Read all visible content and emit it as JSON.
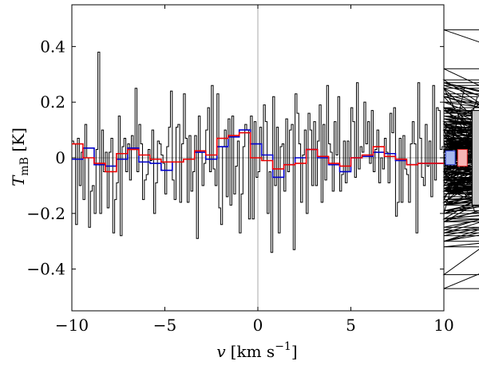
{
  "chart_data": {
    "type": "line",
    "xlabel": {
      "var": "v",
      "unit": "[km s",
      "exp": "−1",
      "close": "]"
    },
    "ylabel": {
      "var": "T",
      "sub": "mB",
      "unit": " [K]"
    },
    "xlim": [
      -10,
      10
    ],
    "ylim": [
      -0.55,
      0.55
    ],
    "x_ticks": [
      {
        "value": -10,
        "label": "−10"
      },
      {
        "value": -5,
        "label": "−5"
      },
      {
        "value": 0,
        "label": "0"
      },
      {
        "value": 5,
        "label": "5"
      },
      {
        "value": 10,
        "label": "10"
      }
    ],
    "y_ticks": [
      {
        "value": 0.4,
        "label": "0.4"
      },
      {
        "value": 0.2,
        "label": "0.2"
      },
      {
        "value": 0,
        "label": "0"
      },
      {
        "value": -0.2,
        "label": "−0.2"
      },
      {
        "value": -0.4,
        "label": "−0.4"
      }
    ],
    "reference_lines": {
      "x": 0,
      "y": 0,
      "color": "#aaaaaa"
    },
    "series": [
      {
        "color": "#000000",
        "step": true,
        "x_start": -10,
        "dx": 0.1,
        "values": [
          0.06,
          0.05,
          -0.24,
          0.07,
          -0.1,
          0.02,
          -0.15,
          0.12,
          0.0,
          -0.25,
          -0.12,
          -0.1,
          -0.2,
          0.03,
          0.38,
          -0.2,
          0.1,
          -0.05,
          0.02,
          -0.18,
          0.02,
          0.07,
          -0.27,
          -0.15,
          -0.09,
          0.15,
          -0.28,
          0.04,
          0.07,
          -0.05,
          0.05,
          -0.08,
          0.08,
          0.03,
          0.25,
          -0.05,
          0.12,
          0.05,
          -0.15,
          -0.08,
          -0.06,
          0.03,
          -0.01,
          0.1,
          -0.2,
          -0.09,
          0.06,
          0.05,
          0.01,
          -0.02,
          -0.13,
          0.04,
          0.11,
          0.24,
          -0.08,
          -0.15,
          0.11,
          0.12,
          -0.16,
          0.05,
          0.23,
          0.07,
          -0.16,
          0.08,
          -0.12,
          -0.05,
          0.08,
          -0.29,
          0.15,
          0.02,
          -0.1,
          -0.02,
          0.1,
          0.18,
          -0.05,
          0.26,
          -0.04,
          -0.1,
          0.23,
          -0.18,
          -0.24,
          0.04,
          0.1,
          -0.14,
          0.14,
          -0.17,
          0.15,
          -0.13,
          -0.03,
          0.06,
          -0.27,
          -0.13,
          0.04,
          0.12,
          0.1,
          -0.22,
          0.15,
          -0.22,
          0.13,
          -0.07,
          -0.05,
          0.11,
          -0.01,
          0.19,
          0.13,
          -0.2,
          -0.05,
          -0.34,
          0.22,
          -0.1,
          0.11,
          -0.27,
          0.04,
          0.05,
          -0.12,
          0.14,
          -0.05,
          0.1,
          0.12,
          -0.33,
          0.23,
          0.16,
          0.05,
          -0.16,
          0.01,
          0.1,
          -0.2,
          0.16,
          0.1,
          -0.1,
          0.13,
          -0.1,
          0.06,
          0.19,
          -0.16,
          0.12,
          -0.08,
          0.26,
          0.05,
          0.02,
          -0.12,
          0.13,
          0.01,
          0.22,
          -0.12,
          -0.06,
          0.06,
          -0.09,
          0.06,
          -0.05,
          0.18,
          0.13,
          -0.07,
          0.27,
          -0.04,
          0.04,
          0.02,
          0.2,
          0.05,
          0.13,
          -0.02,
          0.17,
          -0.05,
          0.03,
          0.1,
          -0.09,
          0.0,
          -0.04,
          0.07,
          0.02,
          -0.09,
          0.16,
          0.09,
          0.18,
          -0.21,
          -0.16,
          0.07,
          -0.16,
          0.08,
          -0.04,
          -0.06,
          -0.16,
          0.05,
          0.13,
          0.05,
          -0.27,
          0.27,
          0.07,
          -0.07,
          -0.1,
          0.12,
          -0.03,
          0.06,
          -0.14,
          0.26,
          -0.08,
          0.18,
          0.17,
          0.03,
          0.04,
          0.02,
          -0.06,
          0.02,
          0.06,
          -0.05,
          -0.1,
          -0.05,
          0.13,
          -0.05,
          -0.09,
          -0.09,
          0.25,
          0.1,
          -0.05,
          -0.15,
          0.02,
          0.1,
          -0.2,
          0.22,
          0.08,
          -0.04,
          0.03,
          0.12,
          0.08,
          -0.08,
          0.05,
          0.04,
          0.01,
          0.04,
          0.0,
          0.1,
          0.25,
          0.04,
          0.03,
          0.05,
          -0.07,
          0.12,
          -0.08,
          0.03,
          0.18,
          -0.1,
          -0.04,
          0.04,
          -0.12,
          0.08,
          0.14,
          0.05,
          0.0,
          -0.12,
          0.03,
          -0.14,
          0.13,
          -0.1,
          0.01,
          0.12,
          -0.08,
          0.0,
          0.03,
          -0.05,
          -0.01,
          0.04,
          0.07,
          -0.11,
          0.01,
          -0.07,
          -0.08,
          0.1,
          -0.09,
          0.09,
          0.02,
          0.07,
          0.28,
          -0.03,
          -0.08,
          0.1,
          -0.12,
          -0.16,
          0.16,
          0.2,
          0.0,
          -0.22,
          0.1,
          0.11,
          0.04,
          -0.11,
          0.14,
          0.13,
          0.06,
          0.03,
          -0.04,
          -0.16,
          0.32,
          0.03,
          0.1,
          -0.23,
          0.12,
          -0.04,
          0.06,
          -0.26,
          -0.06,
          0.18,
          0.03,
          -0.12,
          -0.06,
          0.15,
          0.0,
          0.04,
          -0.12,
          -0.22,
          -0.15,
          -0.11,
          -0.42,
          0.12,
          0.0,
          -0.02,
          0.05,
          -0.08,
          -0.27,
          -0.04,
          0.14,
          -0.1,
          0.15,
          0.06,
          0.0,
          0.18,
          -0.17,
          0.18,
          -0.08,
          -0.2,
          0.14,
          -0.02,
          0.07,
          -0.07,
          0.17,
          -0.32,
          -0.23,
          0.06,
          0.07,
          -0.19,
          0.0,
          0.06,
          0.08,
          -0.17,
          0.1,
          0.04,
          -0.12,
          0.25,
          -0.2,
          -0.01,
          0.18,
          -0.05,
          -0.1,
          0.18,
          0.04,
          -0.08,
          -0.11,
          0.0,
          0.05,
          0.0,
          0.15,
          0.0,
          -0.12,
          -0.07,
          0.23,
          -0.08,
          -0.1,
          0.05,
          -0.13,
          -0.06,
          -0.03,
          0.22,
          -0.13,
          0.04,
          0.03,
          0.06,
          -0.11,
          -0.05,
          -0.2,
          0.02,
          0.06,
          -0.1,
          0.05,
          0.05,
          -0.3,
          0.0,
          0.05,
          0.1,
          -0.47,
          0.05,
          0.06,
          -0.19,
          -0.01,
          0.08,
          0.12,
          0.22,
          -0.09,
          -0.25,
          0.03,
          0.04,
          -0.17,
          -0.04,
          0.06,
          0.27,
          -0.22,
          0.05,
          0.04,
          -0.05,
          0.46,
          -0.02,
          0.11,
          -0.2,
          0.13,
          0.02,
          0.07,
          -0.02,
          -0.3,
          0.17,
          -0.08,
          0.05,
          0.27,
          -0.1,
          0.26,
          -0.16,
          0.05,
          -0.17,
          0.1,
          0.1,
          -0.06,
          0.0,
          -0.12,
          0.14,
          -0.22,
          -0.06,
          0.12,
          0.27,
          -0.08,
          0.05,
          -0.12,
          0.2,
          -0.02,
          0.03,
          0.1,
          -0.3,
          -0.02,
          0.14,
          -0.12,
          -0.05,
          0.1,
          0.07,
          0.02,
          -0.13,
          0.17,
          -0.17,
          0.1,
          -0.08,
          0.07,
          0.04,
          -0.12,
          0.12,
          -0.12,
          0.1,
          -0.28,
          0.08,
          -0.23,
          -0.1,
          -0.02,
          0.15,
          -0.06,
          0.02,
          -0.27,
          0.02,
          0.11,
          0.03,
          -0.16,
          0.15,
          -0.08,
          0.0,
          -0.03,
          -0.02,
          -0.02,
          -0.02,
          0.01,
          -0.02
        ]
      },
      {
        "color": "#0000cc",
        "step": true,
        "x_start": -10,
        "dx": 0.6,
        "values": [
          -0.005,
          0.035,
          -0.025,
          -0.03,
          -0.005,
          0.035,
          -0.015,
          -0.02,
          -0.045,
          -0.015,
          -0.005,
          0.02,
          -0.005,
          0.04,
          0.075,
          0.1,
          0.05,
          0.01,
          -0.07,
          -0.025,
          0.0,
          0.03,
          0.0,
          -0.025,
          -0.05,
          0.0,
          0.005,
          0.02,
          0.015,
          -0.01,
          -0.025,
          -0.02,
          -0.02,
          -0.02
        ]
      },
      {
        "color": "#ee0000",
        "step": true,
        "x_start": -10,
        "dx": 0.6,
        "values": [
          0.05,
          0.0,
          -0.02,
          -0.05,
          0.015,
          0.03,
          0.01,
          -0.005,
          -0.015,
          -0.015,
          -0.005,
          0.025,
          0.01,
          0.07,
          0.08,
          0.09,
          0.0,
          -0.01,
          -0.04,
          -0.025,
          -0.02,
          0.03,
          0.005,
          -0.02,
          -0.03,
          0.0,
          0.01,
          0.04,
          0.005,
          -0.005,
          -0.025,
          -0.02,
          -0.02,
          -0.02
        ]
      }
    ],
    "markers": [
      {
        "shape": "box",
        "x_center": 10.35,
        "y_low": -0.025,
        "y_high": 0.025,
        "fill": "#a6b8ef",
        "stroke": "#2233cc"
      },
      {
        "shape": "box",
        "x_center": 11.0,
        "y_low": -0.03,
        "y_high": 0.03,
        "fill": "#f6b4b4",
        "stroke": "#dd2222"
      },
      {
        "shape": "box",
        "x_center": 11.8,
        "y_low": -0.17,
        "y_high": 0.17,
        "fill": "#c4c4c4",
        "stroke": "#000000"
      }
    ]
  }
}
